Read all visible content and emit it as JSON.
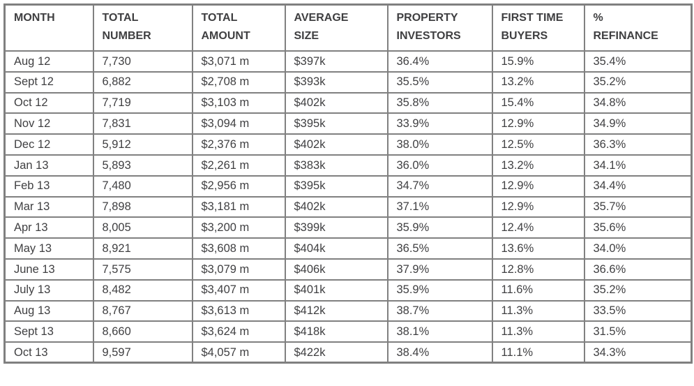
{
  "colors": {
    "border": "#808080",
    "text": "#3f3f41",
    "background": "#ffffff"
  },
  "table": {
    "columns": [
      {
        "id": "month",
        "label": "MONTH"
      },
      {
        "id": "total-number",
        "label": "TOTAL\nNUMBER"
      },
      {
        "id": "total-amount",
        "label": "TOTAL\nAMOUNT"
      },
      {
        "id": "average-size",
        "label": "AVERAGE\nSIZE"
      },
      {
        "id": "property-investors",
        "label": "PROPERTY\nINVESTORS"
      },
      {
        "id": "first-time-buyers",
        "label": "FIRST TIME\nBUYERS"
      },
      {
        "id": "pct-refinance",
        "label": "%\nREFINANCE"
      }
    ],
    "rows": [
      [
        "Aug 12",
        "7,730",
        "$3,071 m",
        "$397k",
        "36.4%",
        "15.9%",
        "35.4%"
      ],
      [
        "Sept 12",
        "6,882",
        "$2,708 m",
        "$393k",
        "35.5%",
        "13.2%",
        "35.2%"
      ],
      [
        "Oct 12",
        "7,719",
        "$3,103 m",
        "$402k",
        "35.8%",
        "15.4%",
        "34.8%"
      ],
      [
        "Nov 12",
        "7,831",
        "$3,094 m",
        "$395k",
        "33.9%",
        "12.9%",
        "34.9%"
      ],
      [
        "Dec 12",
        "5,912",
        "$2,376 m",
        "$402k",
        "38.0%",
        "12.5%",
        "36.3%"
      ],
      [
        "Jan 13",
        "5,893",
        "$2,261 m",
        "$383k",
        "36.0%",
        "13.2%",
        "34.1%"
      ],
      [
        "Feb 13",
        "7,480",
        "$2,956 m",
        "$395k",
        "34.7%",
        "12.9%",
        "34.4%"
      ],
      [
        "Mar 13",
        "7,898",
        "$3,181 m",
        "$402k",
        "37.1%",
        "12.9%",
        "35.7%"
      ],
      [
        "Apr 13",
        "8,005",
        "$3,200 m",
        "$399k",
        "35.9%",
        "12.4%",
        "35.6%"
      ],
      [
        "May 13",
        "8,921",
        "$3,608 m",
        "$404k",
        "36.5%",
        "13.6%",
        "34.0%"
      ],
      [
        "June 13",
        "7,575",
        "$3,079 m",
        "$406k",
        "37.9%",
        "12.8%",
        "36.6%"
      ],
      [
        "July 13",
        "8,482",
        "$3,407 m",
        "$401k",
        "35.9%",
        "11.6%",
        "35.2%"
      ],
      [
        "Aug 13",
        "8,767",
        "$3,613 m",
        "$412k",
        "38.7%",
        "11.3%",
        "33.5%"
      ],
      [
        "Sept 13",
        "8,660",
        "$3,624 m",
        "$418k",
        "38.1%",
        "11.3%",
        "31.5%"
      ],
      [
        "Oct 13",
        "9,597",
        "$4,057 m",
        "$422k",
        "38.4%",
        "11.1%",
        "34.3%"
      ]
    ]
  }
}
